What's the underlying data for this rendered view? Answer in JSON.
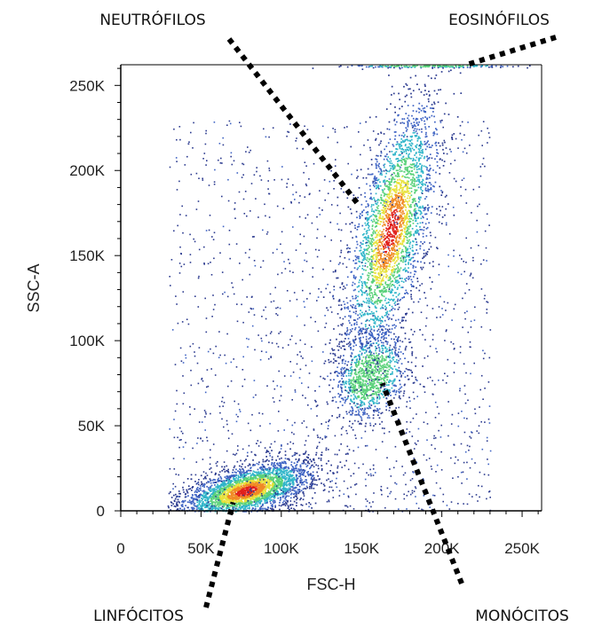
{
  "chart_data": {
    "type": "scatter",
    "style": "density-dot-plot",
    "xlabel": "FSC-H",
    "ylabel": "SSC-A",
    "xlim": [
      0,
      262144
    ],
    "ylim": [
      0,
      262144
    ],
    "x_ticks": [
      {
        "value": 0,
        "label": "0"
      },
      {
        "value": 50000,
        "label": "50K"
      },
      {
        "value": 100000,
        "label": "100K"
      },
      {
        "value": 150000,
        "label": "150K"
      },
      {
        "value": 200000,
        "label": "200K"
      },
      {
        "value": 250000,
        "label": "250K"
      }
    ],
    "y_ticks": [
      {
        "value": 0,
        "label": "0"
      },
      {
        "value": 50000,
        "label": "50K"
      },
      {
        "value": 100000,
        "label": "100K"
      },
      {
        "value": 150000,
        "label": "150K"
      },
      {
        "value": 200000,
        "label": "200K"
      },
      {
        "value": 250000,
        "label": "250K"
      }
    ],
    "grid": false,
    "density_colors": [
      "#2b3a8f",
      "#3f64c4",
      "#2fb5c9",
      "#5ad17a",
      "#e8e23a",
      "#f08a24",
      "#e0201b"
    ],
    "populations": [
      {
        "name": "LINFÓCITOS",
        "center": [
          78000,
          12000
        ],
        "spread": [
          20000,
          7000
        ],
        "weight": 0.34,
        "tilt": 0.25
      },
      {
        "name": "MONÓCITOS",
        "center": [
          155000,
          80000
        ],
        "spread": [
          11000,
          12000
        ],
        "weight": 0.11,
        "tilt": 0.3
      },
      {
        "name": "NEUTRÓFILOS",
        "center": [
          168000,
          165000
        ],
        "spread": [
          14000,
          30000
        ],
        "weight": 0.3,
        "tilt": 1.6
      },
      {
        "name": "EOSINÓFILOS",
        "center": [
          190000,
          262000
        ],
        "spread": [
          25000,
          600
        ],
        "weight": 0.03,
        "tilt": 0
      }
    ],
    "callouts": [
      {
        "label": "NEUTRÓFILOS",
        "target": [
          148000,
          180000
        ]
      },
      {
        "label": "EOSINÓFILOS",
        "target": [
          215000,
          262000
        ]
      },
      {
        "label": "LINFÓCITOS",
        "target": [
          70000,
          5000
        ]
      },
      {
        "label": "MONÓCITOS",
        "target": [
          163000,
          75000
        ]
      }
    ]
  }
}
